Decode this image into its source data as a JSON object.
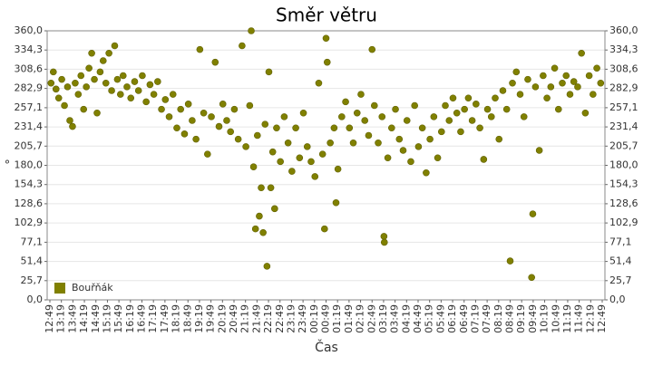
{
  "chart_data": {
    "type": "scatter",
    "title": "Směr větru",
    "xlabel": "Čas",
    "ylabel": "°",
    "ylim": [
      0,
      360
    ],
    "yticks": [
      {
        "value": 0,
        "label": "0,0"
      },
      {
        "value": 25.7,
        "label": "25,7"
      },
      {
        "value": 51.4,
        "label": "51,4"
      },
      {
        "value": 77.1,
        "label": "77,1"
      },
      {
        "value": 102.9,
        "label": "102,9"
      },
      {
        "value": 128.6,
        "label": "128,6"
      },
      {
        "value": 154.3,
        "label": "154,3"
      },
      {
        "value": 180,
        "label": "180,0"
      },
      {
        "value": 205.7,
        "label": "205,7"
      },
      {
        "value": 231.4,
        "label": "231,4"
      },
      {
        "value": 257.1,
        "label": "257,1"
      },
      {
        "value": 282.9,
        "label": "282,9"
      },
      {
        "value": 308.6,
        "label": "308,6"
      },
      {
        "value": 334.3,
        "label": "334,3"
      },
      {
        "value": 360,
        "label": "360,0"
      }
    ],
    "xticks": [
      "12:49",
      "13:19",
      "13:49",
      "14:19",
      "14:49",
      "15:19",
      "15:49",
      "16:19",
      "16:49",
      "17:19",
      "17:49",
      "18:19",
      "18:49",
      "19:19",
      "19:49",
      "20:19",
      "20:49",
      "21:19",
      "21:49",
      "22:19",
      "22:49",
      "23:19",
      "23:49",
      "00:19",
      "00:49",
      "01:19",
      "01:49",
      "02:19",
      "02:49",
      "03:19",
      "03:49",
      "04:19",
      "04:49",
      "05:19",
      "05:49",
      "06:19",
      "06:49",
      "07:19",
      "07:49",
      "08:19",
      "08:49",
      "09:19",
      "09:49",
      "10:19",
      "10:49",
      "11:19",
      "11:49",
      "12:19",
      "12:49"
    ],
    "grid": true,
    "legend": "lower left",
    "x": [
      "12:52",
      "12:58",
      "13:05",
      "13:12",
      "13:20",
      "13:27",
      "13:35",
      "13:41",
      "13:48",
      "13:55",
      "14:03",
      "14:10",
      "14:17",
      "14:24",
      "14:31",
      "14:38",
      "14:45",
      "14:52",
      "15:00",
      "15:08",
      "15:15",
      "15:23",
      "15:30",
      "15:38",
      "15:45",
      "15:53",
      "16:00",
      "16:10",
      "16:20",
      "16:30",
      "16:40",
      "16:50",
      "17:00",
      "17:10",
      "17:20",
      "17:30",
      "17:40",
      "17:50",
      "18:00",
      "18:10",
      "18:20",
      "18:30",
      "18:40",
      "18:50",
      "19:00",
      "19:10",
      "19:20",
      "19:30",
      "19:40",
      "19:50",
      "20:00",
      "20:10",
      "20:20",
      "20:30",
      "20:40",
      "20:50",
      "21:00",
      "21:10",
      "21:20",
      "21:30",
      "21:34",
      "21:40",
      "21:45",
      "21:50",
      "21:55",
      "22:00",
      "22:05",
      "22:10",
      "22:15",
      "22:20",
      "22:25",
      "22:30",
      "22:35",
      "22:40",
      "22:50",
      "23:00",
      "23:10",
      "23:20",
      "23:30",
      "23:40",
      "23:50",
      "00:00",
      "00:10",
      "00:20",
      "00:30",
      "00:40",
      "00:45",
      "00:49",
      "00:52",
      "01:00",
      "01:10",
      "01:15",
      "01:20",
      "01:30",
      "01:40",
      "01:50",
      "02:00",
      "02:10",
      "02:20",
      "02:30",
      "02:40",
      "02:49",
      "02:55",
      "03:05",
      "03:15",
      "03:20",
      "03:21",
      "03:30",
      "03:40",
      "03:50",
      "04:00",
      "04:10",
      "04:20",
      "04:30",
      "04:40",
      "04:50",
      "05:00",
      "05:10",
      "05:20",
      "05:30",
      "05:40",
      "05:50",
      "06:00",
      "06:10",
      "06:20",
      "06:30",
      "06:40",
      "06:50",
      "07:00",
      "07:10",
      "07:20",
      "07:30",
      "07:40",
      "07:50",
      "08:00",
      "08:10",
      "08:20",
      "08:30",
      "08:40",
      "08:49",
      "08:55",
      "09:05",
      "09:15",
      "09:25",
      "09:35",
      "09:45",
      "09:48",
      "09:55",
      "10:05",
      "10:15",
      "10:25",
      "10:35",
      "10:45",
      "10:55",
      "11:05",
      "11:15",
      "11:25",
      "11:35",
      "11:45",
      "11:55",
      "12:05",
      "12:15",
      "12:25",
      "12:35",
      "12:45"
    ],
    "series": [
      {
        "name": "Bouřňák",
        "color": "#808000",
        "values": [
          290,
          305,
          282,
          270,
          295,
          260,
          285,
          240,
          232,
          290,
          275,
          300,
          255,
          285,
          310,
          330,
          295,
          250,
          305,
          320,
          290,
          330,
          280,
          340,
          295,
          275,
          300,
          285,
          270,
          292,
          280,
          300,
          265,
          288,
          275,
          292,
          255,
          268,
          245,
          275,
          230,
          255,
          222,
          262,
          240,
          215,
          335,
          250,
          195,
          245,
          318,
          232,
          262,
          240,
          225,
          255,
          215,
          340,
          205,
          260,
          360,
          178,
          95,
          220,
          112,
          150,
          90,
          235,
          45,
          305,
          150,
          198,
          122,
          230,
          185,
          245,
          210,
          172,
          230,
          190,
          250,
          205,
          185,
          165,
          290,
          195,
          95,
          350,
          318,
          210,
          230,
          130,
          175,
          245,
          265,
          230,
          210,
          250,
          275,
          240,
          220,
          335,
          260,
          210,
          245,
          85,
          77,
          190,
          230,
          255,
          215,
          200,
          240,
          185,
          260,
          205,
          230,
          170,
          215,
          245,
          190,
          225,
          260,
          240,
          270,
          250,
          225,
          255,
          270,
          240,
          262,
          230,
          188,
          255,
          245,
          270,
          215,
          280,
          255,
          52,
          290,
          305,
          275,
          245,
          295,
          30,
          115,
          285,
          200,
          300,
          270,
          285,
          310,
          255,
          290,
          300,
          275,
          292,
          285,
          330,
          250,
          300,
          275,
          310,
          290
        ]
      }
    ]
  }
}
